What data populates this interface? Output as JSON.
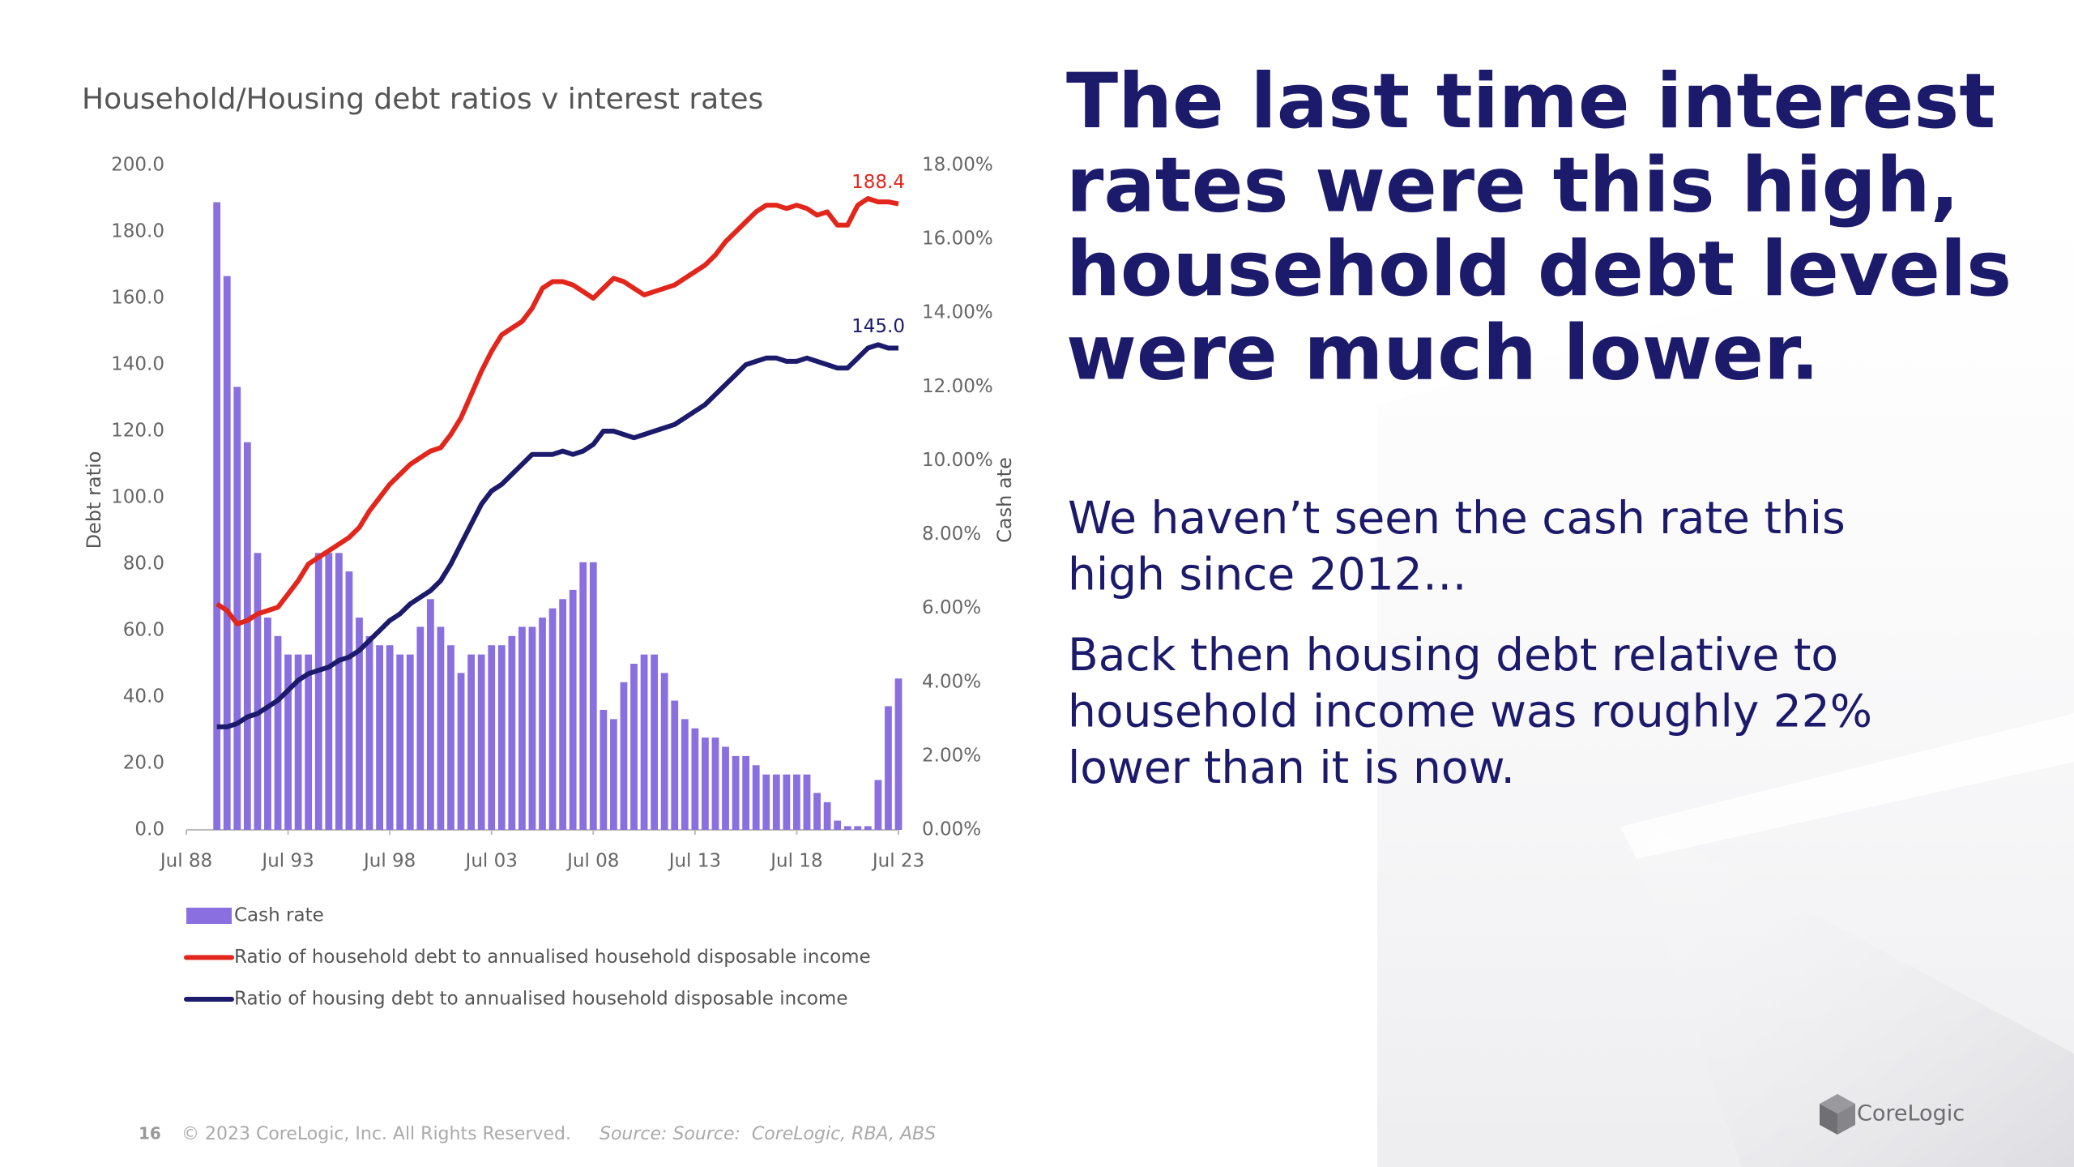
{
  "chart_data": {
    "type": "bar-line",
    "title": "Household/Housing debt ratios v interest rates",
    "y_label": "Debt ratio",
    "y2_label": "Cash ate",
    "x": [
      1990.0,
      1990.5,
      1991.0,
      1991.5,
      1992.0,
      1992.5,
      1993.0,
      1993.5,
      1994.0,
      1994.5,
      1995.0,
      1995.5,
      1996.0,
      1996.5,
      1997.0,
      1997.5,
      1998.0,
      1998.5,
      1999.0,
      1999.5,
      2000.0,
      2000.5,
      2001.0,
      2001.5,
      2002.0,
      2002.5,
      2003.0,
      2003.5,
      2004.0,
      2004.5,
      2005.0,
      2005.5,
      2006.0,
      2006.5,
      2007.0,
      2007.5,
      2008.0,
      2008.5,
      2009.0,
      2009.5,
      2010.0,
      2010.5,
      2011.0,
      2011.5,
      2012.0,
      2012.5,
      2013.0,
      2013.5,
      2014.0,
      2014.5,
      2015.0,
      2015.5,
      2016.0,
      2016.5,
      2017.0,
      2017.5,
      2018.0,
      2018.5,
      2019.0,
      2019.5,
      2020.0,
      2020.5,
      2021.0,
      2021.5,
      2022.0,
      2022.5,
      2023.0,
      2023.5
    ],
    "series": [
      {
        "name": "Cash rate",
        "kind": "bar",
        "axis": "y2",
        "color": "#8a6fe0",
        "values": [
          17.0,
          15.0,
          12.0,
          10.5,
          7.5,
          5.75,
          5.25,
          4.75,
          4.75,
          4.75,
          7.5,
          7.5,
          7.5,
          7.0,
          5.75,
          5.25,
          5.0,
          5.0,
          4.75,
          4.75,
          5.5,
          6.25,
          5.5,
          5.0,
          4.25,
          4.75,
          4.75,
          5.0,
          5.0,
          5.25,
          5.5,
          5.5,
          5.75,
          6.0,
          6.25,
          6.5,
          7.25,
          7.25,
          3.25,
          3.0,
          4.0,
          4.5,
          4.75,
          4.75,
          4.25,
          3.5,
          3.0,
          2.75,
          2.5,
          2.5,
          2.25,
          2.0,
          2.0,
          1.75,
          1.5,
          1.5,
          1.5,
          1.5,
          1.5,
          1.0,
          0.75,
          0.25,
          0.1,
          0.1,
          0.1,
          1.35,
          3.35,
          4.1
        ]
      },
      {
        "name": "Ratio of household debt to annualised household disposable income",
        "kind": "line",
        "color": "#e2261c",
        "values": [
          68,
          66,
          62,
          63,
          65,
          66,
          67,
          71,
          75,
          80,
          82,
          84,
          86,
          88,
          91,
          96,
          100,
          104,
          107,
          110,
          112,
          114,
          115,
          119,
          124,
          131,
          138,
          144,
          149,
          151,
          153,
          157,
          163,
          165,
          165,
          164,
          162,
          160,
          163,
          166,
          165,
          163,
          161,
          162,
          163,
          164,
          166,
          168,
          170,
          173,
          177,
          180,
          183,
          186,
          188,
          188,
          187,
          188,
          187,
          185,
          186,
          182,
          182,
          188,
          190,
          189,
          189,
          188.4
        ]
      },
      {
        "name": "Ratio of housing debt to annualised household disposable income",
        "kind": "line",
        "color": "#1c1a6b",
        "values": [
          31,
          31,
          32,
          34,
          35,
          37,
          39,
          42,
          45,
          47,
          48,
          49,
          51,
          52,
          54,
          57,
          60,
          63,
          65,
          68,
          70,
          72,
          75,
          80,
          86,
          92,
          98,
          102,
          104,
          107,
          110,
          113,
          113,
          113,
          114,
          113,
          114,
          116,
          120,
          120,
          119,
          118,
          119,
          120,
          121,
          122,
          124,
          126,
          128,
          131,
          134,
          137,
          140,
          141,
          142,
          142,
          141,
          141,
          142,
          141,
          140,
          139,
          139,
          142,
          145,
          146,
          145,
          145.0
        ],
        "value_labels": [
          null,
          null,
          null,
          null,
          null,
          null,
          null,
          null,
          null,
          null,
          null,
          null,
          null,
          null,
          null,
          null,
          null,
          null,
          null,
          null,
          null,
          null,
          null,
          null,
          null,
          null,
          null,
          null,
          null,
          null,
          null,
          null,
          null,
          null,
          null,
          null,
          null,
          null,
          null,
          null,
          null,
          null,
          null,
          null,
          null,
          null,
          null,
          null,
          null,
          null,
          null,
          null,
          null,
          null,
          null,
          null,
          null,
          null,
          null,
          null,
          null,
          null,
          null,
          null,
          null,
          null,
          null,
          "145.0"
        ]
      }
    ],
    "xlim": [
      1988.5,
      2023.5
    ],
    "xticks": [
      {
        "value": 1988.5,
        "label": "Jul 88"
      },
      {
        "value": 1993.5,
        "label": "Jul 93"
      },
      {
        "value": 1998.5,
        "label": "Jul 98"
      },
      {
        "value": 2003.5,
        "label": "Jul 03"
      },
      {
        "value": 2008.5,
        "label": "Jul 08"
      },
      {
        "value": 2013.5,
        "label": "Jul 13"
      },
      {
        "value": 2018.5,
        "label": "Jul 18"
      },
      {
        "value": 2023.5,
        "label": "Jul 23"
      }
    ],
    "ylim": [
      0,
      200
    ],
    "yticks": [
      {
        "value": 0,
        "label": "0.0"
      },
      {
        "value": 20,
        "label": "20.0"
      },
      {
        "value": 40,
        "label": "40.0"
      },
      {
        "value": 60,
        "label": "60.0"
      },
      {
        "value": 80,
        "label": "80.0"
      },
      {
        "value": 100,
        "label": "100.0"
      },
      {
        "value": 120,
        "label": "120.0"
      },
      {
        "value": 140,
        "label": "140.0"
      },
      {
        "value": 160,
        "label": "160.0"
      },
      {
        "value": 180,
        "label": "180.0"
      },
      {
        "value": 200,
        "label": "200.0"
      }
    ],
    "y2lim": [
      0,
      18
    ],
    "y2ticks": [
      {
        "value": 0,
        "label": "0.00%"
      },
      {
        "value": 2,
        "label": "2.00%"
      },
      {
        "value": 4,
        "label": "4.00%"
      },
      {
        "value": 6,
        "label": "6.00%"
      },
      {
        "value": 8,
        "label": "8.00%"
      },
      {
        "value": 10,
        "label": "10.00%"
      },
      {
        "value": 12,
        "label": "12.00%"
      },
      {
        "value": 14,
        "label": "14.00%"
      },
      {
        "value": 16,
        "label": "16.00%"
      },
      {
        "value": 18,
        "label": "18.00%"
      }
    ],
    "legend": "bottom"
  },
  "slide": {
    "headline": [
      "The last time interest",
      "rates were this high,",
      "household debt levels",
      "were much lower."
    ],
    "paragraphs": [
      [
        "We haven’t seen the cash rate this",
        "high since 2012…"
      ],
      [
        "Back then housing debt relative to",
        "household income was roughly 22%",
        "lower than it is now."
      ]
    ],
    "page_number": 16,
    "copyright": "© 2023 CoreLogic, Inc. All Rights Reserved.",
    "source": "Source: Source:  CoreLogic, RBA, ABS",
    "logo": "CoreLogic"
  }
}
